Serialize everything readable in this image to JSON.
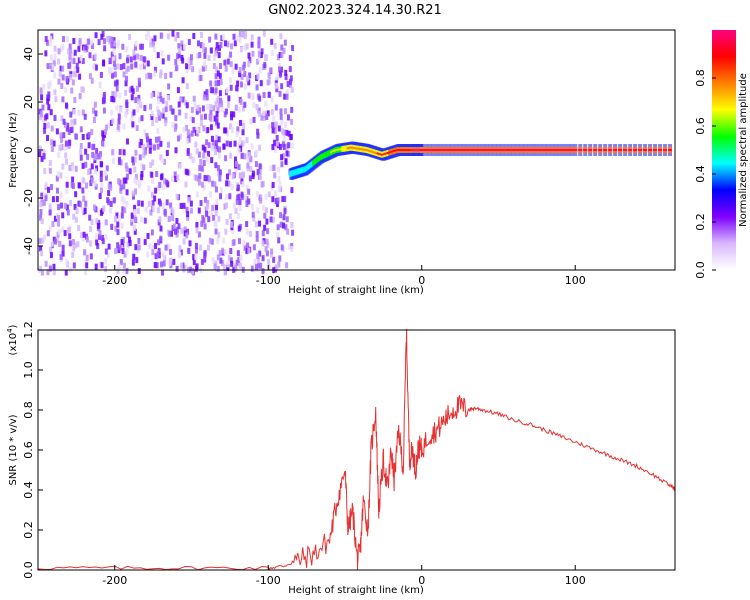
{
  "title": "GN02.2023.324.14.30.R21",
  "chart_data": [
    {
      "type": "heatmap",
      "xlabel": "Height of straight line (km)",
      "ylabel": "Frequency (Hz)",
      "xlim": [
        -250,
        165
      ],
      "ylim": [
        -50,
        50
      ],
      "x_ticks": [
        -200,
        -100,
        0,
        100
      ],
      "y_ticks": [
        -40,
        -20,
        0,
        20,
        40
      ],
      "colorbar": {
        "label": "Normalized spectral amplitude",
        "range": [
          0.0,
          1.0
        ],
        "ticks": [
          "0.0",
          "0.2",
          "0.4",
          "0.6",
          "0.8"
        ],
        "colors": [
          "#ffffff",
          "#d9b8ff",
          "#7f00ff",
          "#0000ff",
          "#00ffff",
          "#00ff00",
          "#ffff00",
          "#ff8000",
          "#ff0000",
          "#ff0080"
        ]
      },
      "noise_region_x": [
        -250,
        -85
      ],
      "trace": {
        "x": [
          -85,
          -75,
          -65,
          -55,
          -45,
          -35,
          -25,
          -15,
          -5,
          0,
          50,
          100,
          165
        ],
        "freq": [
          -10,
          -8,
          -3,
          0,
          1,
          0,
          -2,
          0,
          0,
          0,
          0,
          0,
          0
        ],
        "amplitude": [
          0.4,
          0.45,
          0.55,
          0.65,
          0.75,
          0.8,
          0.85,
          0.9,
          0.95,
          1.0,
          1.0,
          1.0,
          1.0
        ]
      }
    },
    {
      "type": "line",
      "xlabel": "Height of straight line (km)",
      "ylabel": "SNR (10 * v/v)",
      "scale_label": "(x10",
      "scale_exp": "4",
      "scale_close": ")",
      "xlim": [
        -250,
        165
      ],
      "ylim": [
        0.0,
        1.2
      ],
      "x_ticks": [
        -200,
        -100,
        0,
        100
      ],
      "y_ticks": [
        "0.0",
        "0.2",
        "0.4",
        "0.6",
        "0.8",
        "1.0",
        "1.2"
      ],
      "series": [
        {
          "color": "#e83030",
          "x": [
            -250,
            -200,
            -150,
            -100,
            -90,
            -80,
            -70,
            -60,
            -55,
            -50,
            -48,
            -45,
            -42,
            -40,
            -38,
            -35,
            -33,
            -30,
            -28,
            -25,
            -22,
            -20,
            -18,
            -15,
            -12,
            -10,
            -8,
            -6,
            -4,
            -2,
            0,
            5,
            10,
            15,
            20,
            25,
            30,
            35,
            40,
            50,
            60,
            70,
            80,
            90,
            100,
            110,
            120,
            130,
            140,
            150,
            160,
            165
          ],
          "y": [
            0.01,
            0.01,
            0.01,
            0.01,
            0.02,
            0.05,
            0.08,
            0.15,
            0.35,
            0.5,
            0.2,
            0.3,
            0.05,
            0.1,
            0.35,
            0.2,
            0.6,
            0.8,
            0.3,
            0.55,
            0.4,
            0.6,
            0.45,
            0.7,
            0.5,
            1.2,
            0.55,
            0.6,
            0.5,
            0.62,
            0.6,
            0.68,
            0.7,
            0.75,
            0.8,
            0.82,
            0.8,
            0.81,
            0.8,
            0.78,
            0.75,
            0.73,
            0.7,
            0.67,
            0.64,
            0.61,
            0.58,
            0.55,
            0.52,
            0.48,
            0.43,
            0.41
          ]
        }
      ]
    }
  ]
}
